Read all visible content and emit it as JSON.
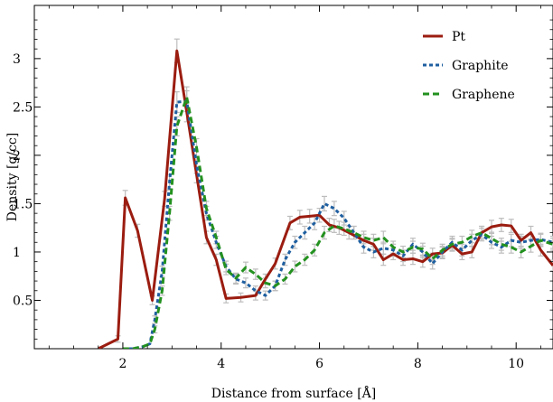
{
  "chart_data": {
    "type": "line",
    "title": "",
    "xlabel": "Distance from surface [Å]",
    "ylabel": "Density [g/cc]",
    "xlim": [
      0.2,
      10.75
    ],
    "ylim": [
      0.0,
      3.55
    ],
    "xticks": [
      2,
      4,
      6,
      8,
      10
    ],
    "yticks": [
      0.5,
      1,
      1.5,
      2,
      2.5,
      3
    ],
    "ytick_labels": [
      "0.5",
      "1",
      "1.5",
      "2",
      "2.5",
      "3"
    ],
    "grid": false,
    "legend_position": "top-right",
    "series": [
      {
        "name": "Pt",
        "color": "#9b1c10",
        "dash": "solid",
        "x": [
          1.5,
          1.7,
          1.9,
          2.05,
          2.3,
          2.6,
          2.85,
          3.1,
          3.3,
          3.5,
          3.7,
          3.9,
          4.1,
          4.4,
          4.7,
          4.9,
          5.1,
          5.4,
          5.6,
          5.8,
          6.0,
          6.2,
          6.4,
          6.6,
          6.9,
          7.1,
          7.3,
          7.5,
          7.7,
          7.9,
          8.1,
          8.3,
          8.5,
          8.7,
          8.9,
          9.1,
          9.3,
          9.5,
          9.7,
          9.9,
          10.1,
          10.3,
          10.5,
          10.75
        ],
        "y": [
          0.0,
          0.05,
          0.1,
          1.56,
          1.22,
          0.5,
          1.55,
          3.08,
          2.45,
          1.8,
          1.15,
          0.92,
          0.52,
          0.53,
          0.55,
          0.72,
          0.88,
          1.3,
          1.36,
          1.37,
          1.38,
          1.28,
          1.25,
          1.2,
          1.12,
          1.08,
          0.92,
          0.98,
          0.92,
          0.93,
          0.9,
          0.98,
          0.99,
          1.07,
          0.98,
          1.0,
          1.2,
          1.26,
          1.28,
          1.27,
          1.12,
          1.2,
          1.02,
          0.86
        ]
      },
      {
        "name": "Graphite",
        "color": "#1f5fa0",
        "dash": "dotted",
        "x": [
          2.0,
          2.2,
          2.4,
          2.55,
          2.65,
          2.8,
          2.95,
          3.1,
          3.3,
          3.5,
          3.7,
          3.9,
          4.1,
          4.3,
          4.5,
          4.7,
          4.9,
          5.1,
          5.3,
          5.5,
          5.7,
          5.9,
          6.1,
          6.3,
          6.5,
          6.7,
          6.9,
          7.1,
          7.3,
          7.5,
          7.7,
          7.9,
          8.1,
          8.3,
          8.5,
          8.7,
          8.9,
          9.1,
          9.3,
          9.5,
          9.7,
          9.9,
          10.1,
          10.3,
          10.5,
          10.75
        ],
        "y": [
          0.0,
          0.0,
          0.02,
          0.05,
          0.3,
          0.8,
          1.72,
          2.55,
          2.56,
          1.9,
          1.4,
          1.1,
          0.85,
          0.72,
          0.68,
          0.6,
          0.55,
          0.65,
          0.92,
          1.1,
          1.2,
          1.3,
          1.5,
          1.45,
          1.35,
          1.2,
          1.05,
          1.0,
          1.04,
          1.02,
          0.96,
          1.08,
          1.0,
          0.88,
          1.0,
          1.1,
          1.02,
          1.12,
          1.18,
          1.1,
          1.05,
          1.12,
          1.1,
          1.12,
          1.13,
          1.1
        ]
      },
      {
        "name": "Graphene",
        "color": "#23911f",
        "dash": "dashed",
        "x": [
          2.0,
          2.2,
          2.4,
          2.55,
          2.65,
          2.8,
          2.95,
          3.1,
          3.3,
          3.5,
          3.7,
          3.9,
          4.1,
          4.3,
          4.5,
          4.7,
          4.9,
          5.1,
          5.3,
          5.5,
          5.7,
          5.9,
          6.1,
          6.3,
          6.5,
          6.7,
          6.9,
          7.1,
          7.3,
          7.5,
          7.7,
          7.9,
          8.1,
          8.3,
          8.5,
          8.7,
          8.9,
          9.1,
          9.3,
          9.5,
          9.7,
          9.9,
          10.1,
          10.3,
          10.5,
          10.75
        ],
        "y": [
          0.0,
          0.0,
          0.02,
          0.05,
          0.2,
          0.6,
          1.4,
          2.3,
          2.6,
          2.08,
          1.45,
          1.15,
          0.82,
          0.73,
          0.84,
          0.77,
          0.68,
          0.65,
          0.72,
          0.85,
          0.92,
          1.02,
          1.2,
          1.27,
          1.24,
          1.2,
          1.15,
          1.12,
          1.15,
          1.05,
          1.0,
          1.05,
          1.03,
          0.93,
          1.02,
          1.08,
          1.1,
          1.16,
          1.2,
          1.14,
          1.08,
          1.05,
          1.0,
          1.06,
          1.12,
          1.08
        ]
      }
    ],
    "error_bar_color": "#bdbdbd"
  }
}
